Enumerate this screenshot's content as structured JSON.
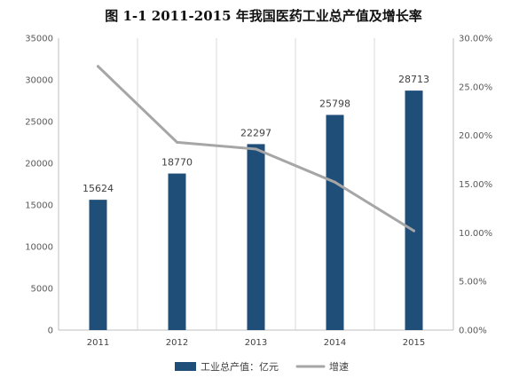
{
  "chart_data": {
    "type": "bar",
    "title": "图 1-1  2011-2015 年我国医药工业总产值及增长率",
    "categories": [
      "2011",
      "2012",
      "2013",
      "2014",
      "2015"
    ],
    "series": [
      {
        "name": "工业总产值：亿元",
        "type": "bar",
        "axis": "left",
        "values": [
          15624,
          18770,
          22297,
          25798,
          28713
        ],
        "data_labels": [
          "15624",
          "18770",
          "22297",
          "25798",
          "28713"
        ],
        "color": "#1f4e79"
      },
      {
        "name": "增速",
        "type": "line",
        "axis": "right",
        "values": [
          0.271,
          0.193,
          0.186,
          0.152,
          0.102
        ],
        "color": "#a6a6a6"
      }
    ],
    "y_left": {
      "ylim": [
        0,
        35000
      ],
      "ticks": [
        "0",
        "5000",
        "10000",
        "15000",
        "20000",
        "25000",
        "30000",
        "35000"
      ]
    },
    "y_right": {
      "ylim": [
        0,
        0.3
      ],
      "ticks": [
        "0.00%",
        "5.00%",
        "10.00%",
        "15.00%",
        "20.00%",
        "25.00%",
        "30.00%"
      ]
    },
    "grid": "vertical",
    "legend_position": "bottom"
  }
}
